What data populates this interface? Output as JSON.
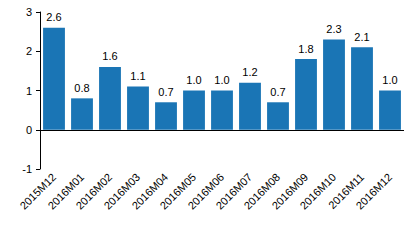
{
  "chart_data": {
    "type": "bar",
    "categories": [
      "2015M12",
      "2016M01",
      "2016M02",
      "2016M03",
      "2016M04",
      "2016M05",
      "2016M06",
      "2016M07",
      "2016M08",
      "2016M09",
      "2016M10",
      "2016M11",
      "2016M12"
    ],
    "values": [
      2.6,
      0.8,
      1.6,
      1.1,
      0.7,
      1.0,
      1.0,
      1.2,
      0.7,
      1.8,
      2.3,
      2.1,
      1.0
    ],
    "value_labels": [
      "2.6",
      "0.8",
      "1.6",
      "1.1",
      "0.7",
      "1.0",
      "1.0",
      "1.2",
      "0.7",
      "1.8",
      "2.3",
      "2.1",
      "1.0"
    ],
    "color": "#1a75b5",
    "ylim": [
      -1,
      3
    ],
    "yticks": [
      -1,
      0,
      1,
      2,
      3
    ],
    "grid": false,
    "data_labels": true
  }
}
